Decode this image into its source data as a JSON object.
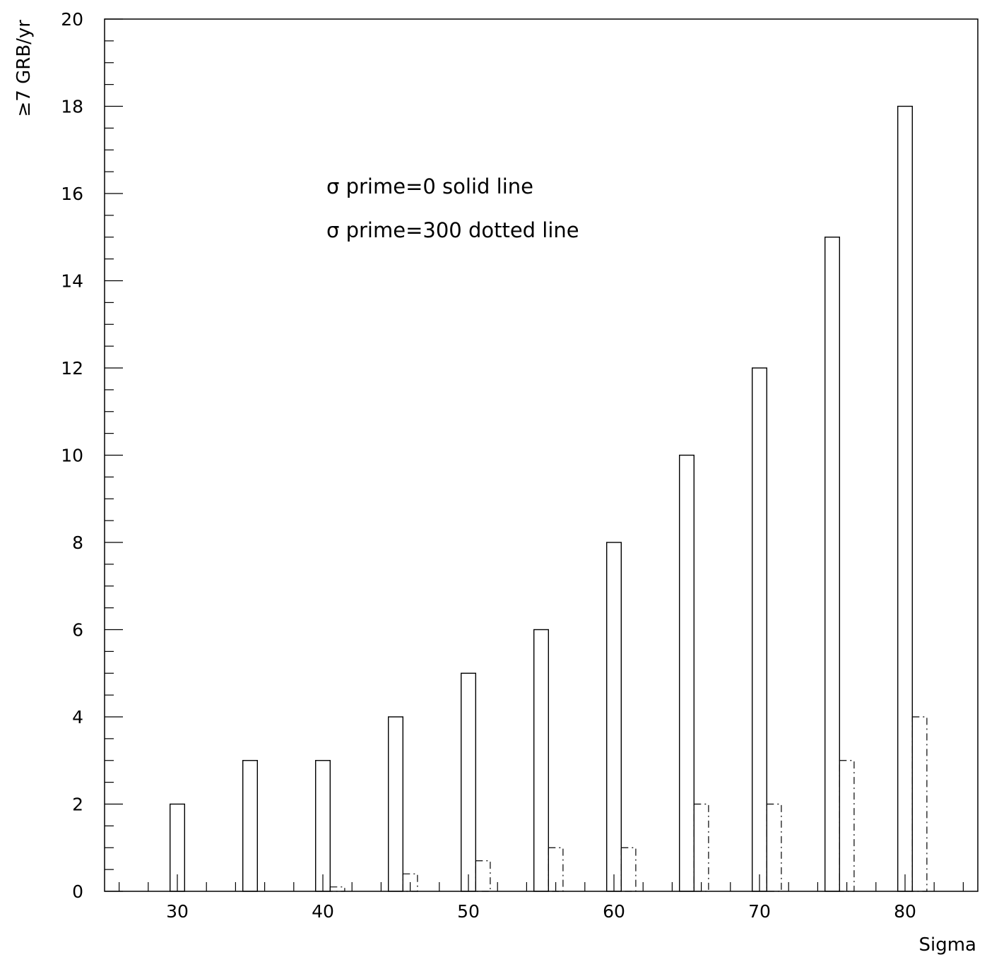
{
  "chart_data": {
    "type": "bar",
    "title": "",
    "xlabel": "Sigma",
    "ylabel": "≥7 GRB/yr",
    "xlim": [
      25,
      85
    ],
    "ylim": [
      0,
      20
    ],
    "x_ticks": [
      30,
      40,
      50,
      60,
      70,
      80
    ],
    "y_ticks": [
      0,
      2,
      4,
      6,
      8,
      10,
      12,
      14,
      16,
      18,
      20
    ],
    "grid": false,
    "annotations": [
      "σ prime=0 solid line",
      "σ prime=300 dotted line"
    ],
    "series": [
      {
        "style": "solid",
        "x": [
          30,
          35,
          40,
          45,
          50,
          55,
          60,
          65,
          70,
          75,
          80
        ],
        "values": [
          2,
          3,
          3,
          4,
          5,
          6,
          8,
          10,
          12,
          15,
          18
        ]
      },
      {
        "style": "dotted",
        "x": [
          41,
          46,
          51,
          56,
          61,
          66,
          71,
          76,
          81
        ],
        "values": [
          0.1,
          0.4,
          0.7,
          1,
          1,
          2,
          2,
          3,
          4
        ]
      }
    ]
  }
}
